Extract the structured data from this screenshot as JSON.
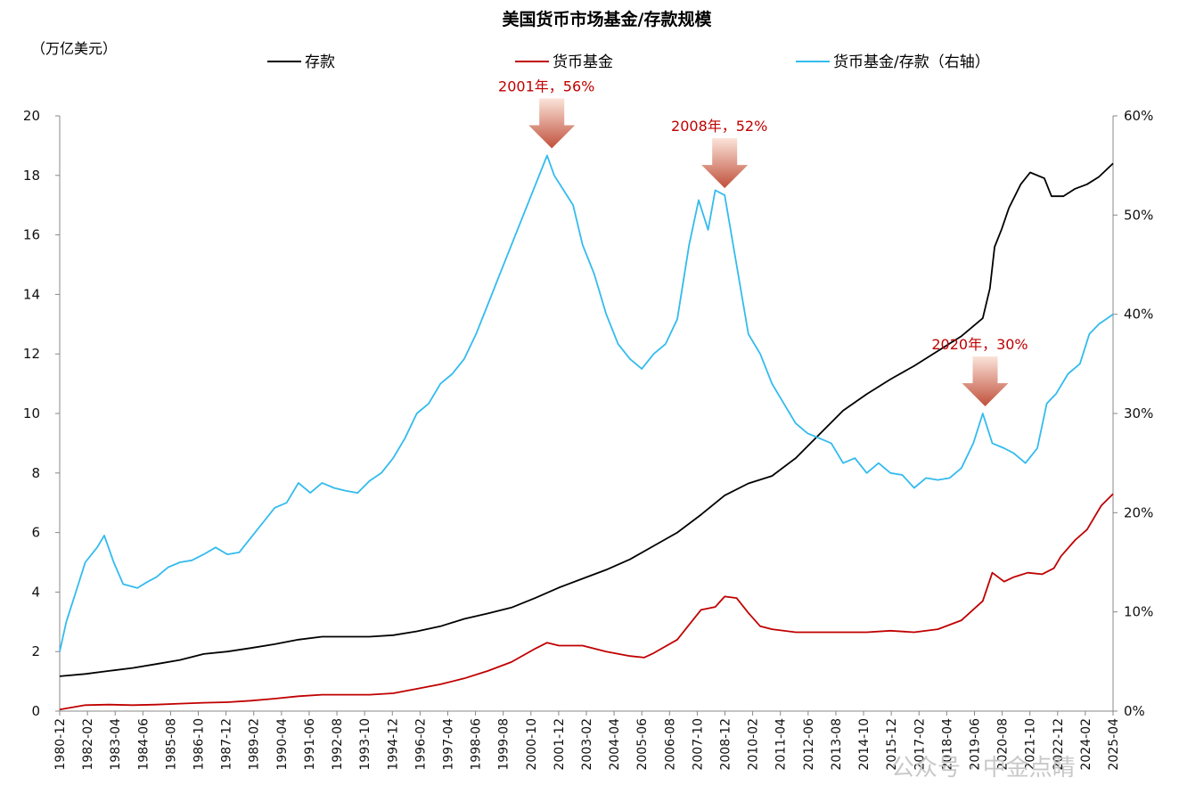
{
  "chart_data": {
    "type": "line",
    "title": "美国货币市场基金/存款规模",
    "left_unit": "（万亿美元）",
    "y_left": {
      "min": 0,
      "max": 20,
      "ticks": [
        "0",
        "2",
        "4",
        "6",
        "8",
        "10",
        "12",
        "14",
        "16",
        "18",
        "20"
      ]
    },
    "y_right": {
      "min": 0,
      "max": 0.6,
      "ticks": [
        "0%",
        "10%",
        "20%",
        "30%",
        "40%",
        "50%",
        "60%"
      ]
    },
    "x_tick_labels": [
      "1980-12",
      "1982-02",
      "1983-04",
      "1984-06",
      "1985-08",
      "1986-10",
      "1987-12",
      "1989-02",
      "1990-04",
      "1991-06",
      "1992-08",
      "1993-10",
      "1994-12",
      "1996-02",
      "1997-04",
      "1998-06",
      "1999-08",
      "2000-10",
      "2001-12",
      "2003-02",
      "2004-04",
      "2005-06",
      "2006-08",
      "2007-10",
      "2008-12",
      "2010-02",
      "2011-04",
      "2012-06",
      "2013-08",
      "2014-10",
      "2015-12",
      "2017-02",
      "2018-04",
      "2019-06",
      "2020-08",
      "2021-10",
      "2022-12",
      "2024-02",
      "2025-04"
    ],
    "legend": [
      "存款",
      "货币基金",
      "货币基金/存款（右轴）"
    ],
    "series": [
      {
        "name": "存款",
        "axis": "left",
        "color": "#000000",
        "points": [
          [
            1980.92,
            1.17
          ],
          [
            1982.0,
            1.25
          ],
          [
            1983.0,
            1.35
          ],
          [
            1984.0,
            1.45
          ],
          [
            1985.0,
            1.58
          ],
          [
            1986.0,
            1.72
          ],
          [
            1987.0,
            1.92
          ],
          [
            1988.0,
            2.0
          ],
          [
            1989.0,
            2.12
          ],
          [
            1990.0,
            2.25
          ],
          [
            1991.0,
            2.4
          ],
          [
            1992.0,
            2.5
          ],
          [
            1993.0,
            2.5
          ],
          [
            1994.0,
            2.5
          ],
          [
            1995.0,
            2.55
          ],
          [
            1996.0,
            2.68
          ],
          [
            1997.0,
            2.85
          ],
          [
            1998.0,
            3.1
          ],
          [
            1999.0,
            3.28
          ],
          [
            2000.0,
            3.48
          ],
          [
            2001.0,
            3.8
          ],
          [
            2002.0,
            4.15
          ],
          [
            2003.0,
            4.45
          ],
          [
            2004.0,
            4.75
          ],
          [
            2005.0,
            5.1
          ],
          [
            2006.0,
            5.55
          ],
          [
            2007.0,
            6.0
          ],
          [
            2008.0,
            6.6
          ],
          [
            2009.0,
            7.25
          ],
          [
            2010.0,
            7.65
          ],
          [
            2011.0,
            7.9
          ],
          [
            2012.0,
            8.5
          ],
          [
            2013.0,
            9.3
          ],
          [
            2014.0,
            10.1
          ],
          [
            2015.0,
            10.65
          ],
          [
            2016.0,
            11.15
          ],
          [
            2017.0,
            11.6
          ],
          [
            2018.0,
            12.1
          ],
          [
            2019.0,
            12.6
          ],
          [
            2019.9,
            13.2
          ],
          [
            2020.2,
            14.2
          ],
          [
            2020.4,
            15.6
          ],
          [
            2020.7,
            16.2
          ],
          [
            2021.0,
            16.9
          ],
          [
            2021.5,
            17.7
          ],
          [
            2021.9,
            18.1
          ],
          [
            2022.5,
            17.9
          ],
          [
            2022.8,
            17.3
          ],
          [
            2023.3,
            17.3
          ],
          [
            2023.8,
            17.55
          ],
          [
            2024.3,
            17.7
          ],
          [
            2024.8,
            17.95
          ],
          [
            2025.4,
            18.4
          ]
        ]
      },
      {
        "name": "货币基金",
        "axis": "left",
        "color": "#c00000",
        "points": [
          [
            1980.92,
            0.05
          ],
          [
            1982.0,
            0.2
          ],
          [
            1983.0,
            0.22
          ],
          [
            1984.0,
            0.2
          ],
          [
            1985.0,
            0.22
          ],
          [
            1986.0,
            0.25
          ],
          [
            1987.0,
            0.28
          ],
          [
            1988.0,
            0.3
          ],
          [
            1989.0,
            0.35
          ],
          [
            1990.0,
            0.42
          ],
          [
            1991.0,
            0.5
          ],
          [
            1992.0,
            0.55
          ],
          [
            1993.0,
            0.55
          ],
          [
            1994.0,
            0.55
          ],
          [
            1995.0,
            0.6
          ],
          [
            1996.0,
            0.75
          ],
          [
            1997.0,
            0.9
          ],
          [
            1998.0,
            1.1
          ],
          [
            1999.0,
            1.35
          ],
          [
            2000.0,
            1.65
          ],
          [
            2001.0,
            2.1
          ],
          [
            2001.5,
            2.3
          ],
          [
            2002.0,
            2.2
          ],
          [
            2003.0,
            2.2
          ],
          [
            2004.0,
            2.0
          ],
          [
            2005.0,
            1.85
          ],
          [
            2005.6,
            1.8
          ],
          [
            2006.0,
            1.95
          ],
          [
            2007.0,
            2.4
          ],
          [
            2007.5,
            2.9
          ],
          [
            2008.0,
            3.4
          ],
          [
            2008.6,
            3.5
          ],
          [
            2009.0,
            3.85
          ],
          [
            2009.5,
            3.8
          ],
          [
            2010.0,
            3.3
          ],
          [
            2010.5,
            2.85
          ],
          [
            2011.0,
            2.75
          ],
          [
            2012.0,
            2.65
          ],
          [
            2013.0,
            2.65
          ],
          [
            2014.0,
            2.65
          ],
          [
            2015.0,
            2.65
          ],
          [
            2016.0,
            2.7
          ],
          [
            2017.0,
            2.65
          ],
          [
            2018.0,
            2.75
          ],
          [
            2019.0,
            3.05
          ],
          [
            2019.9,
            3.7
          ],
          [
            2020.3,
            4.65
          ],
          [
            2020.8,
            4.35
          ],
          [
            2021.2,
            4.5
          ],
          [
            2021.8,
            4.65
          ],
          [
            2022.4,
            4.6
          ],
          [
            2022.9,
            4.8
          ],
          [
            2023.2,
            5.2
          ],
          [
            2023.8,
            5.75
          ],
          [
            2024.3,
            6.1
          ],
          [
            2024.9,
            6.9
          ],
          [
            2025.4,
            7.3
          ]
        ]
      },
      {
        "name": "货币基金/存款（右轴）",
        "axis": "right",
        "color": "#33bbee",
        "points": [
          [
            1980.92,
            0.06
          ],
          [
            1981.2,
            0.09
          ],
          [
            1981.6,
            0.12
          ],
          [
            1982.0,
            0.15
          ],
          [
            1982.5,
            0.165
          ],
          [
            1982.8,
            0.177
          ],
          [
            1983.2,
            0.15
          ],
          [
            1983.6,
            0.128
          ],
          [
            1984.2,
            0.124
          ],
          [
            1984.6,
            0.13
          ],
          [
            1985.0,
            0.135
          ],
          [
            1985.5,
            0.145
          ],
          [
            1986.0,
            0.15
          ],
          [
            1986.5,
            0.152
          ],
          [
            1987.0,
            0.158
          ],
          [
            1987.5,
            0.165
          ],
          [
            1988.0,
            0.158
          ],
          [
            1988.5,
            0.16
          ],
          [
            1989.0,
            0.175
          ],
          [
            1989.5,
            0.19
          ],
          [
            1990.0,
            0.205
          ],
          [
            1990.5,
            0.21
          ],
          [
            1991.0,
            0.23
          ],
          [
            1991.5,
            0.22
          ],
          [
            1992.0,
            0.23
          ],
          [
            1992.5,
            0.225
          ],
          [
            1993.0,
            0.222
          ],
          [
            1993.5,
            0.22
          ],
          [
            1994.0,
            0.232
          ],
          [
            1994.5,
            0.24
          ],
          [
            1995.0,
            0.255
          ],
          [
            1995.5,
            0.275
          ],
          [
            1996.0,
            0.3
          ],
          [
            1996.5,
            0.31
          ],
          [
            1997.0,
            0.33
          ],
          [
            1997.5,
            0.34
          ],
          [
            1998.0,
            0.355
          ],
          [
            1998.5,
            0.38
          ],
          [
            1999.0,
            0.41
          ],
          [
            1999.5,
            0.44
          ],
          [
            2000.0,
            0.47
          ],
          [
            2000.5,
            0.5
          ],
          [
            2001.0,
            0.53
          ],
          [
            2001.5,
            0.56
          ],
          [
            2001.8,
            0.54
          ],
          [
            2002.2,
            0.525
          ],
          [
            2002.6,
            0.51
          ],
          [
            2003.0,
            0.47
          ],
          [
            2003.5,
            0.44
          ],
          [
            2004.0,
            0.4
          ],
          [
            2004.5,
            0.37
          ],
          [
            2005.0,
            0.355
          ],
          [
            2005.5,
            0.345
          ],
          [
            2006.0,
            0.36
          ],
          [
            2006.5,
            0.37
          ],
          [
            2007.0,
            0.395
          ],
          [
            2007.5,
            0.47
          ],
          [
            2007.9,
            0.515
          ],
          [
            2008.3,
            0.485
          ],
          [
            2008.6,
            0.525
          ],
          [
            2009.0,
            0.52
          ],
          [
            2009.5,
            0.45
          ],
          [
            2010.0,
            0.38
          ],
          [
            2010.5,
            0.36
          ],
          [
            2011.0,
            0.33
          ],
          [
            2011.5,
            0.31
          ],
          [
            2012.0,
            0.29
          ],
          [
            2012.5,
            0.28
          ],
          [
            2013.0,
            0.275
          ],
          [
            2013.5,
            0.27
          ],
          [
            2014.0,
            0.25
          ],
          [
            2014.5,
            0.255
          ],
          [
            2015.0,
            0.24
          ],
          [
            2015.5,
            0.25
          ],
          [
            2016.0,
            0.24
          ],
          [
            2016.5,
            0.238
          ],
          [
            2017.0,
            0.225
          ],
          [
            2017.5,
            0.235
          ],
          [
            2018.0,
            0.233
          ],
          [
            2018.5,
            0.235
          ],
          [
            2019.0,
            0.245
          ],
          [
            2019.5,
            0.27
          ],
          [
            2019.9,
            0.3
          ],
          [
            2020.3,
            0.27
          ],
          [
            2020.8,
            0.265
          ],
          [
            2021.2,
            0.26
          ],
          [
            2021.7,
            0.25
          ],
          [
            2022.2,
            0.265
          ],
          [
            2022.6,
            0.31
          ],
          [
            2023.0,
            0.32
          ],
          [
            2023.5,
            0.34
          ],
          [
            2024.0,
            0.35
          ],
          [
            2024.4,
            0.38
          ],
          [
            2024.8,
            0.39
          ],
          [
            2025.4,
            0.4
          ]
        ]
      }
    ],
    "annotations": [
      {
        "text": "2001年，56%",
        "x": 2001.7,
        "y_right": 0.56
      },
      {
        "text": "2008年，52%",
        "x": 2009.0,
        "y_right": 0.52
      },
      {
        "text": "2020年，30%",
        "x": 2020.0,
        "y_right": 0.3
      }
    ],
    "grid": false,
    "legend_position": "top"
  },
  "watermark": "公众号 · 中金点睛",
  "colors": {
    "deposit": "#000000",
    "fund": "#c00000",
    "ratio": "#33bbee",
    "annotation": "#c00000"
  }
}
